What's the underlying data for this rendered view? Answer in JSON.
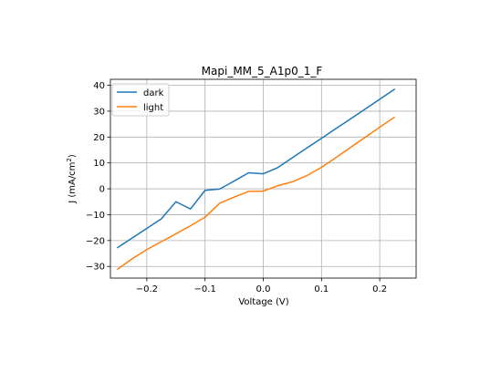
{
  "chart_data": {
    "type": "line",
    "title": "Mapi_MM_5_A1p0_1_F",
    "xlabel": "Voltage (V)",
    "ylabel_main": "J (mA/cm",
    "ylabel_sup": "2",
    "ylabel_close": ")",
    "xlim": [
      -0.2625,
      0.2625
    ],
    "ylim": [
      -34.5,
      42.3
    ],
    "xticks": [
      -0.2,
      -0.1,
      0.0,
      0.1,
      0.2
    ],
    "xtick_labels": [
      "−0.2",
      "−0.1",
      "0.0",
      "0.1",
      "0.2"
    ],
    "yticks": [
      -30,
      -20,
      -10,
      0,
      10,
      20,
      30,
      40
    ],
    "ytick_labels": [
      "−30",
      "−20",
      "−10",
      "0",
      "10",
      "20",
      "30",
      "40"
    ],
    "grid": true,
    "legend_position": "top-left",
    "series": [
      {
        "name": "dark",
        "color": "#1f77b4",
        "x": [
          -0.25,
          -0.225,
          -0.2,
          -0.175,
          -0.15,
          -0.125,
          -0.1,
          -0.075,
          -0.05,
          -0.025,
          0.0,
          0.025,
          0.05,
          0.075,
          0.1,
          0.125,
          0.15,
          0.175,
          0.2,
          0.225
        ],
        "y": [
          -22.7,
          -19.0,
          -15.3,
          -11.6,
          -5.0,
          -7.8,
          -0.6,
          -0.1,
          3.0,
          6.2,
          5.8,
          8.2,
          12.0,
          15.8,
          19.5,
          23.3,
          27.0,
          30.8,
          34.6,
          38.4
        ]
      },
      {
        "name": "light",
        "color": "#ff7f0e",
        "x": [
          -0.25,
          -0.225,
          -0.2,
          -0.175,
          -0.15,
          -0.125,
          -0.1,
          -0.075,
          -0.05,
          -0.025,
          0.0,
          0.025,
          0.05,
          0.075,
          0.1,
          0.125,
          0.15,
          0.175,
          0.2,
          0.225
        ],
        "y": [
          -31.0,
          -27.0,
          -23.5,
          -20.4,
          -17.4,
          -14.3,
          -11.0,
          -5.6,
          -3.2,
          -1.0,
          -0.9,
          1.2,
          2.7,
          5.1,
          8.3,
          12.1,
          16.0,
          19.9,
          23.8,
          27.6
        ]
      }
    ]
  }
}
